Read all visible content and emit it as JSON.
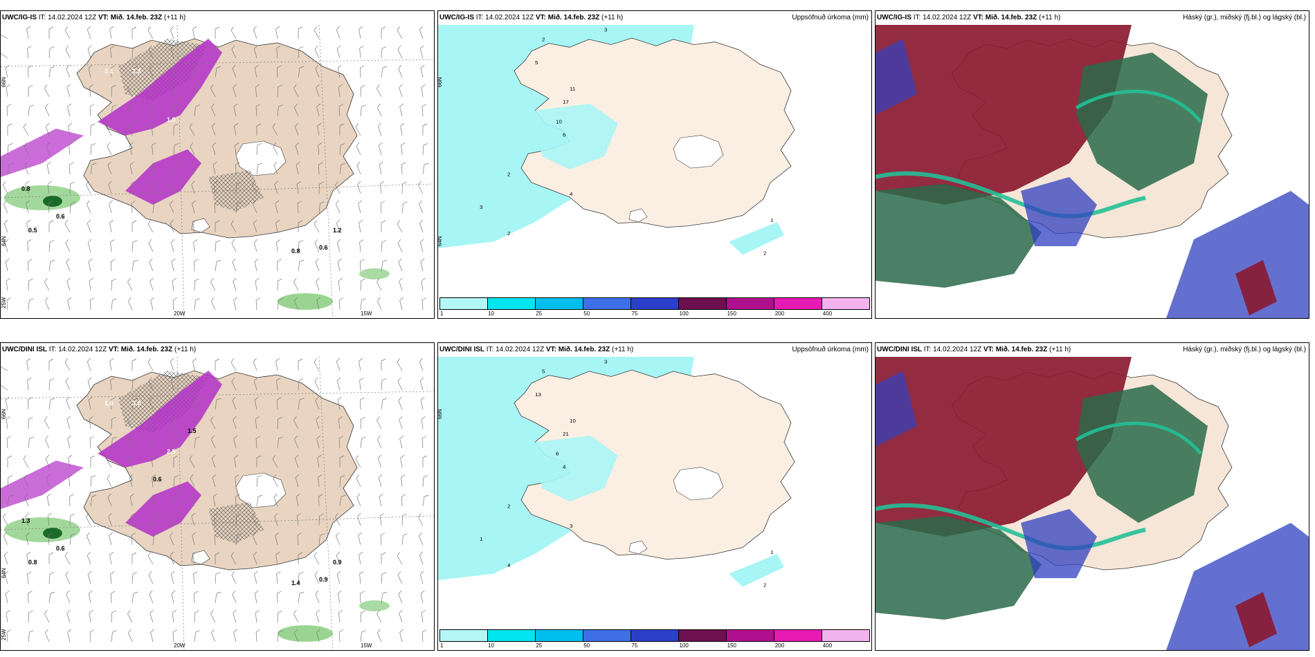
{
  "rows": [
    {
      "model": "UWC/IG-IS",
      "panels": [
        {
          "model": "UWC/IG-IS",
          "it_label": "IT:",
          "it": "14.02.2024 12Z",
          "vt_label": "VT:",
          "vt": "Mið. 14.feb. 23Z",
          "lead": "(+11 h)",
          "right_title": "",
          "kind": "wind",
          "values": [
            "1.0",
            "2.1",
            "2.3",
            "1.0",
            "0.8",
            "0.6",
            "0.5",
            "1.2",
            "0.8",
            "0.6"
          ],
          "lons": [
            "20W",
            "15W"
          ],
          "lats": [
            "66N",
            "64N",
            "25W"
          ]
        },
        {
          "model": "UWC/IG-IS",
          "it_label": "IT:",
          "it": "14.02.2024 12Z",
          "vt_label": "VT:",
          "vt": "Mið. 14.feb. 23Z",
          "lead": "(+11 h)",
          "right_title": "Uppsöfnuð úrkoma (mm)",
          "kind": "precip",
          "values": [
            "3",
            "2",
            "5",
            "17",
            "11",
            "10",
            "6",
            "2",
            "3",
            "4",
            "2",
            "1",
            "2"
          ],
          "lons": [],
          "lats": [
            "66N",
            "64N"
          ]
        },
        {
          "model": "UWC/IG-IS",
          "it_label": "IT:",
          "it": "14.02.2024 12Z",
          "vt_label": "VT:",
          "vt": "Mið. 14.feb. 23Z",
          "lead": "(+11 h)",
          "right_title": "Háský (gr.), miðský (fj.bl.) og lágský (bl.)",
          "kind": "cloud",
          "values": [],
          "lons": [],
          "lats": []
        }
      ]
    },
    {
      "model": "UWC/DINI ISL",
      "panels": [
        {
          "model": "UWC/DINI ISL",
          "it_label": "IT:",
          "it": "14.02.2024 12Z",
          "vt_label": "VT:",
          "vt": "Mið. 14.feb. 23Z",
          "lead": "(+11 h)",
          "right_title": "",
          "kind": "wind",
          "values": [
            "1.1",
            "1.6",
            "3.0",
            "2.5",
            "1.3",
            "0.6",
            "0.8",
            "0.9",
            "1.4",
            "0.9",
            "0.6",
            "1.5"
          ],
          "lons": [
            "20W",
            "15W"
          ],
          "lats": [
            "66N",
            "64N",
            "25W"
          ]
        },
        {
          "model": "UWC/DINI ISL",
          "it_label": "IT:",
          "it": "14.02.2024 12Z",
          "vt_label": "VT:",
          "vt": "Mið. 14.feb. 23Z",
          "lead": "(+11 h)",
          "right_title": "Uppsöfnuð úrkoma (mm)",
          "kind": "precip",
          "values": [
            "3",
            "5",
            "13",
            "21",
            "10",
            "6",
            "4",
            "2",
            "1",
            "3",
            "4",
            "1",
            "2"
          ],
          "lons": [],
          "lats": [
            "66N"
          ]
        },
        {
          "model": "UWC/DINI ISL",
          "it_label": "IT:",
          "it": "14.02.2024 12Z",
          "vt_label": "VT:",
          "vt": "Mið. 14.feb. 23Z",
          "lead": "(+11 h)",
          "right_title": "Háský (gr.), miðský (fj.bl.) og lágský (bl.)",
          "kind": "cloud",
          "values": [],
          "lons": [],
          "lats": []
        }
      ]
    }
  ],
  "precip_legend": {
    "colors": [
      "#b3f7f7",
      "#00e6ef",
      "#00bfef",
      "#3f6fe6",
      "#2b3fc8",
      "#6e0f4f",
      "#b0108e",
      "#e81ab4",
      "#f3b3ef"
    ],
    "ticks": [
      "1",
      "10",
      "25",
      "50",
      "75",
      "100",
      "150",
      "200",
      "400"
    ]
  },
  "colors": {
    "land": "#f5e6d8",
    "land2": "#e8d4c0",
    "sea_precip": "#a8f5f5",
    "purple": "#b32fc8",
    "purple_dark": "#7a1a86",
    "green": "#58b84a",
    "green_dark": "#1a6a28",
    "cloud_red": "#8a1a30",
    "cloud_green": "#2a6a4a",
    "cloud_teal": "#22c096",
    "cloud_blue": "#3040c0"
  }
}
